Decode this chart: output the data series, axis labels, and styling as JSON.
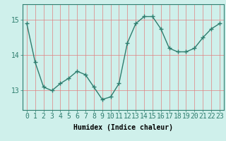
{
  "x": [
    0,
    1,
    2,
    3,
    4,
    5,
    6,
    7,
    8,
    9,
    10,
    11,
    12,
    13,
    14,
    15,
    16,
    17,
    18,
    19,
    20,
    21,
    22,
    23
  ],
  "y": [
    14.9,
    13.8,
    13.1,
    13.0,
    13.2,
    13.35,
    13.55,
    13.45,
    13.1,
    12.75,
    12.82,
    13.2,
    14.35,
    14.9,
    15.1,
    15.1,
    14.75,
    14.2,
    14.1,
    14.1,
    14.2,
    14.5,
    14.75,
    14.9
  ],
  "line_color": "#2e7d6e",
  "marker": "+",
  "marker_size": 4,
  "marker_linewidth": 1.0,
  "line_width": 1.0,
  "bg_color": "#cff0eb",
  "grid_color": "#e08080",
  "grid_linewidth": 0.5,
  "xlabel": "Humidex (Indice chaleur)",
  "xlabel_fontsize": 7,
  "xlabel_fontweight": "bold",
  "ylabel_ticks": [
    13,
    14,
    15
  ],
  "xlim": [
    -0.5,
    23.5
  ],
  "ylim": [
    12.45,
    15.45
  ],
  "tick_fontsize": 7,
  "xtick_labels": [
    "0",
    "1",
    "2",
    "3",
    "4",
    "5",
    "6",
    "7",
    "8",
    "9",
    "10",
    "11",
    "12",
    "13",
    "14",
    "15",
    "16",
    "17",
    "18",
    "19",
    "20",
    "21",
    "22",
    "23"
  ],
  "spine_color": "#2e7d6e",
  "tick_color": "#2e7d6e"
}
